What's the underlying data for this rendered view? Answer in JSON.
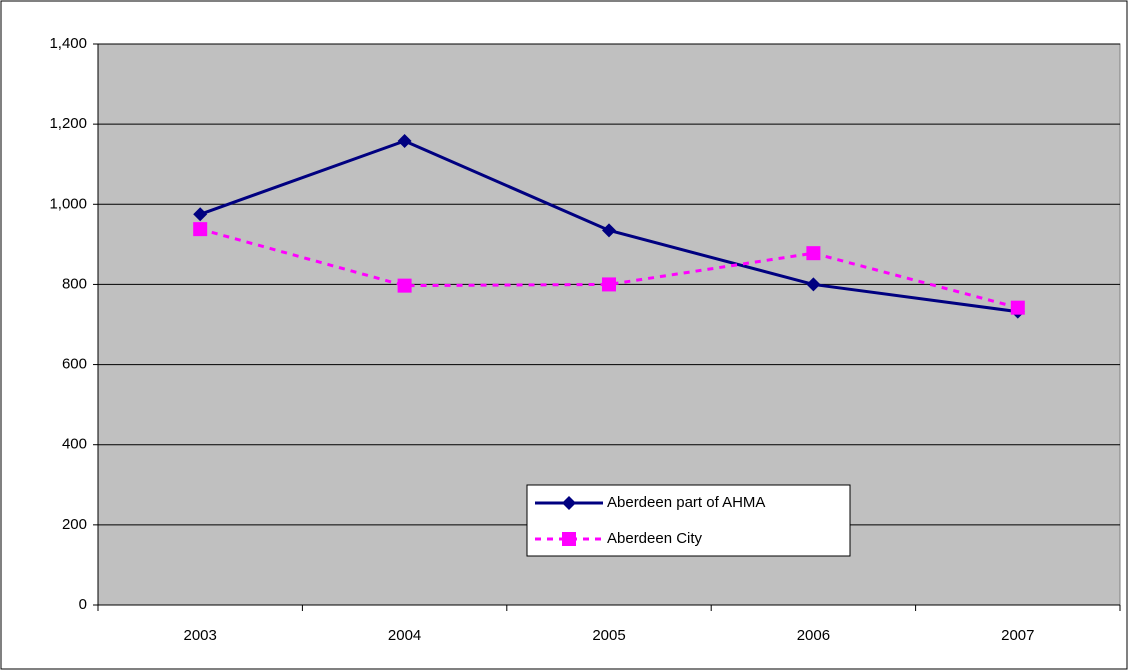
{
  "chart_data": {
    "type": "line",
    "categories": [
      "2003",
      "2004",
      "2005",
      "2006",
      "2007"
    ],
    "series": [
      {
        "name": "Aberdeen part of AHMA",
        "color": "#000080",
        "marker": "diamond",
        "dash": false,
        "values": [
          975,
          1158,
          935,
          800,
          732
        ]
      },
      {
        "name": "Aberdeen City",
        "color": "#ff00ff",
        "marker": "square",
        "dash": true,
        "values": [
          938,
          797,
          800,
          878,
          742
        ]
      }
    ],
    "ylim": [
      0,
      1400
    ],
    "yticks": [
      0,
      200,
      400,
      600,
      800,
      {
        "value": 1000,
        "label": "1,000"
      },
      {
        "value": 1200,
        "label": "1,200"
      },
      {
        "value": 1400,
        "label": "1,400"
      }
    ],
    "grid": true,
    "plot_background": "#c0c0c0"
  }
}
